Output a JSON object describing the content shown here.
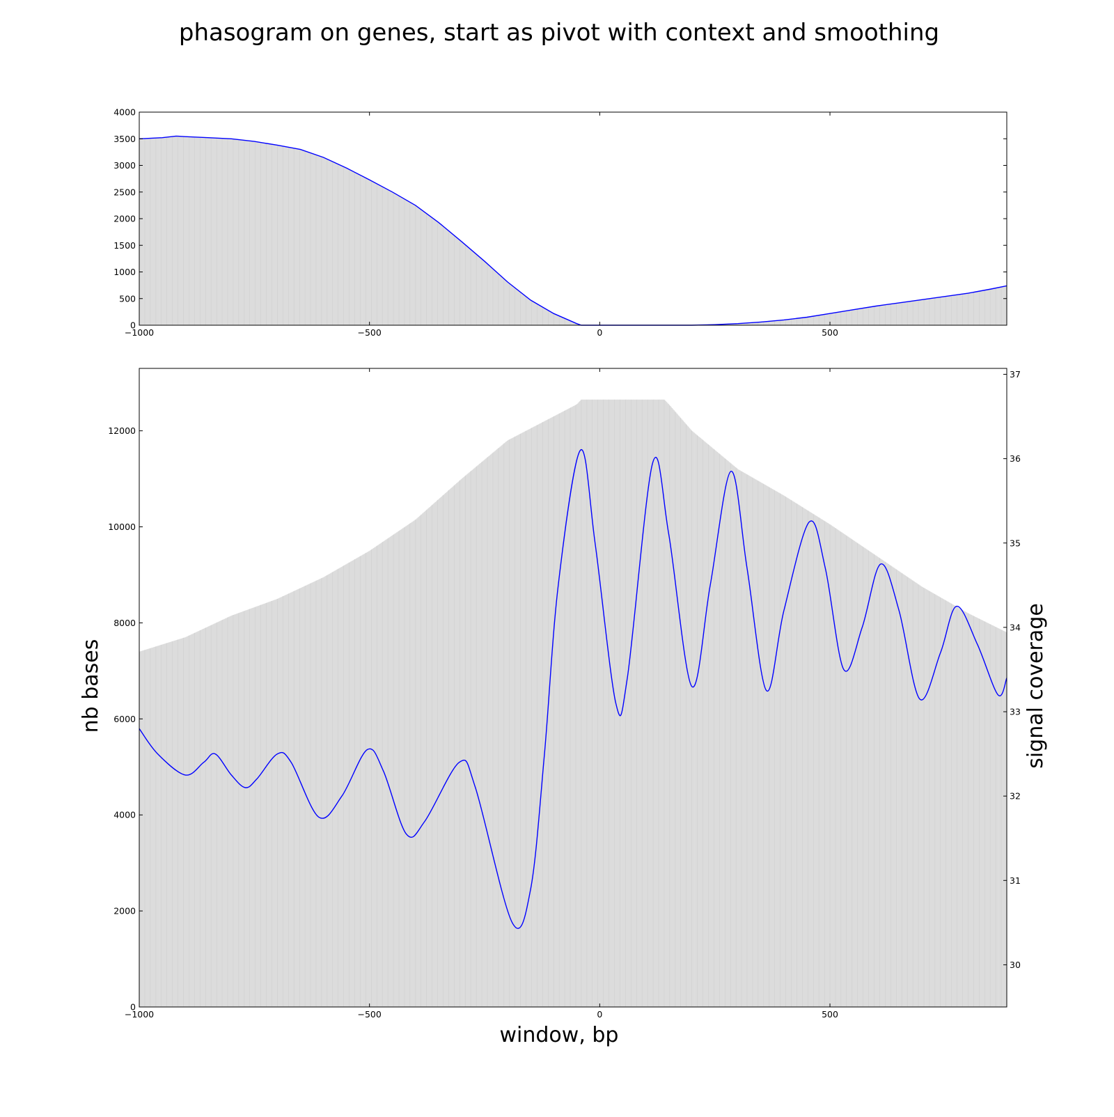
{
  "title": "phasogram on genes, start as pivot with context and smoothing",
  "colors": {
    "line": "#0000ff",
    "bars": "#dcdcdc",
    "axes": "#000000",
    "background": "#ffffff"
  },
  "chart_data": [
    {
      "type": "area",
      "panel": "top",
      "title": "",
      "xlabel": "",
      "ylabel": "",
      "xlim": [
        -1000,
        884
      ],
      "ylim": [
        0,
        4000
      ],
      "xticks": [
        -1000,
        -500,
        0,
        500
      ],
      "xtick_labels": [
        "−1000",
        "−500",
        "0",
        "500"
      ],
      "yticks": [
        0,
        500,
        1000,
        1500,
        2000,
        2500,
        3000,
        3500,
        4000
      ],
      "ytick_labels": [
        "0",
        "500",
        "1000",
        "1500",
        "2000",
        "2500",
        "3000",
        "3500",
        "4000"
      ],
      "grid": false,
      "series": [
        {
          "x": [
            -1000,
            -950,
            -920,
            -900,
            -850,
            -800,
            -750,
            -700,
            -650,
            -600,
            -550,
            -500,
            -450,
            -400,
            -350,
            -300,
            -250,
            -200,
            -150,
            -100,
            -50,
            -40,
            0,
            100,
            200,
            250,
            300,
            350,
            400,
            450,
            500,
            550,
            600,
            650,
            700,
            750,
            800,
            850,
            884
          ],
          "y": [
            3500,
            3520,
            3550,
            3540,
            3520,
            3500,
            3450,
            3380,
            3300,
            3150,
            2950,
            2730,
            2500,
            2250,
            1930,
            1570,
            1200,
            810,
            470,
            220,
            30,
            0,
            0,
            0,
            0,
            10,
            30,
            60,
            100,
            150,
            220,
            290,
            360,
            420,
            480,
            540,
            600,
            680,
            740
          ]
        }
      ]
    },
    {
      "type": "bar+line",
      "panel": "bottom",
      "title": "",
      "xlabel": "window, bp",
      "ylabel": "nb bases",
      "y2label": "signal coverage",
      "xlim": [
        -1000,
        884
      ],
      "ylim": [
        0,
        13300
      ],
      "y2lim": [
        29.5,
        37.07
      ],
      "xticks": [
        -1000,
        -500,
        0,
        500
      ],
      "xtick_labels": [
        "−1000",
        "−500",
        "0",
        "500"
      ],
      "yticks": [
        0,
        2000,
        4000,
        6000,
        8000,
        10000,
        12000
      ],
      "ytick_labels": [
        "0",
        "2000",
        "4000",
        "6000",
        "8000",
        "10000",
        "12000"
      ],
      "y2ticks": [
        30,
        31,
        32,
        33,
        34,
        35,
        36,
        37
      ],
      "y2tick_labels": [
        "30",
        "31",
        "32",
        "33",
        "34",
        "35",
        "36",
        "37"
      ],
      "grid": false,
      "bars": {
        "x": [
          -1000,
          -900,
          -800,
          -700,
          -600,
          -500,
          -400,
          -300,
          -200,
          -150,
          -100,
          -50,
          -40,
          140,
          150,
          200,
          300,
          400,
          500,
          600,
          700,
          800,
          884
        ],
        "y": [
          7400,
          7700,
          8150,
          8500,
          8950,
          9500,
          10150,
          11000,
          11800,
          12050,
          12300,
          12550,
          12650,
          12650,
          12550,
          12000,
          11200,
          10650,
          10050,
          9400,
          8750,
          8200,
          7800
        ]
      },
      "line": {
        "x": [
          -1000,
          -960,
          -900,
          -860,
          -835,
          -800,
          -770,
          -745,
          -700,
          -670,
          -610,
          -560,
          -505,
          -470,
          -420,
          -380,
          -305,
          -270,
          -190,
          -150,
          -120,
          -90,
          -42,
          -10,
          35,
          60,
          115,
          150,
          200,
          240,
          285,
          320,
          362,
          400,
          455,
          490,
          530,
          570,
          610,
          650,
          695,
          740,
          775,
          820,
          865,
          884
        ],
        "y": [
          32.8,
          32.5,
          32.25,
          32.4,
          32.5,
          32.25,
          32.1,
          32.2,
          32.5,
          32.4,
          31.75,
          32.0,
          32.55,
          32.3,
          31.55,
          31.7,
          32.4,
          32.1,
          30.5,
          30.9,
          32.5,
          34.5,
          36.1,
          35.0,
          33.1,
          33.4,
          35.95,
          35.1,
          33.3,
          34.5,
          35.85,
          34.7,
          33.25,
          34.2,
          35.25,
          34.7,
          33.5,
          34.0,
          34.75,
          34.2,
          33.15,
          33.7,
          34.25,
          33.8,
          33.2,
          33.4
        ]
      }
    }
  ]
}
